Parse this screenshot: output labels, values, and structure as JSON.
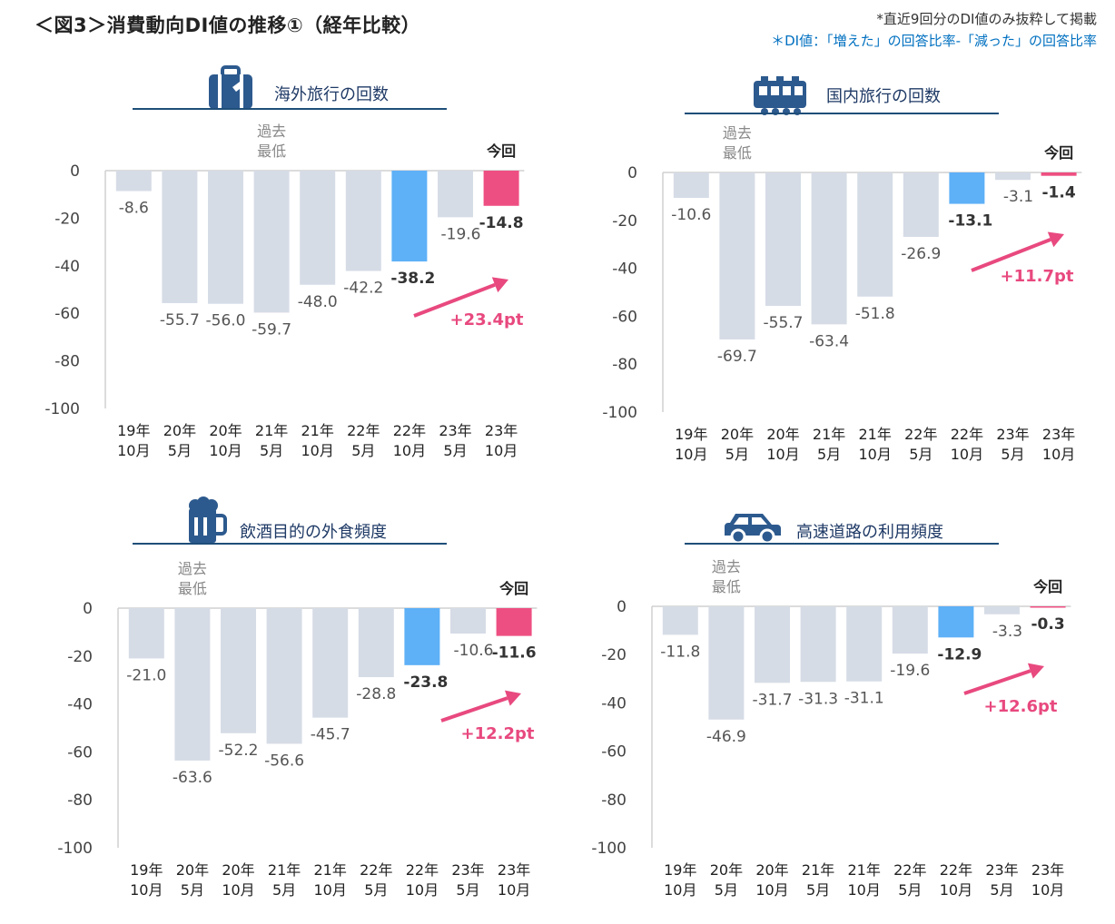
{
  "header": {
    "title": "＜図3＞消費動向DI値の推移①（経年比較）",
    "note_1": "*直近9回分のDI値のみ抜粋して掲載",
    "note_2": "＊DI値：「増えた」の回答比率-「減った」の回答比率"
  },
  "colors": {
    "normal_bar": "#d6dce6",
    "last_year_bar": "#5eb0f7",
    "current_bar": "#ee4f82",
    "arrow": "#e8497f",
    "icon": "#2d5a8e"
  },
  "chart_data": [
    {
      "type": "bar",
      "title": "海外旅行の回数",
      "icon": "suitcase-icon",
      "categories": [
        [
          "19年",
          "10月"
        ],
        [
          "20年",
          "5月"
        ],
        [
          "20年",
          "10月"
        ],
        [
          "21年",
          "5月"
        ],
        [
          "21年",
          "10月"
        ],
        [
          "22年",
          "5月"
        ],
        [
          "22年",
          "10月"
        ],
        [
          "23年",
          "5月"
        ],
        [
          "23年",
          "10月"
        ]
      ],
      "values": [
        -8.6,
        -55.7,
        -56.0,
        -59.7,
        -48.0,
        -42.2,
        -38.2,
        -19.6,
        -14.8
      ],
      "value_labels": [
        "-8.6",
        "-55.7",
        "-56.0",
        "-59.7",
        "-48.0",
        "-42.2",
        "-38.2",
        "-19.6",
        "-14.8"
      ],
      "yticks": [
        "0",
        "-20",
        "-40",
        "-60",
        "-80",
        "-100"
      ],
      "ylim": [
        -100,
        0
      ],
      "lowest_label": [
        "過去",
        "最低"
      ],
      "lowest_index": 3,
      "current_label": "今回",
      "change_label": "+23.4pt"
    },
    {
      "type": "bar",
      "title": "国内旅行の回数",
      "icon": "train-icon",
      "categories": [
        [
          "19年",
          "10月"
        ],
        [
          "20年",
          "5月"
        ],
        [
          "20年",
          "10月"
        ],
        [
          "21年",
          "5月"
        ],
        [
          "21年",
          "10月"
        ],
        [
          "22年",
          "5月"
        ],
        [
          "22年",
          "10月"
        ],
        [
          "23年",
          "5月"
        ],
        [
          "23年",
          "10月"
        ]
      ],
      "values": [
        -10.6,
        -69.7,
        -55.7,
        -63.4,
        -51.8,
        -26.9,
        -13.1,
        -3.1,
        -1.4
      ],
      "value_labels": [
        "-10.6",
        "-69.7",
        "-55.7",
        "-63.4",
        "-51.8",
        "-26.9",
        "-13.1",
        "-3.1",
        "-1.4"
      ],
      "yticks": [
        "0",
        "-20",
        "-40",
        "-60",
        "-80",
        "-100"
      ],
      "ylim": [
        -100,
        0
      ],
      "lowest_label": [
        "過去",
        "最低"
      ],
      "lowest_index": 1,
      "current_label": "今回",
      "change_label": "+11.7pt"
    },
    {
      "type": "bar",
      "title": "飲酒目的の外食頻度",
      "icon": "beer-mug-icon",
      "categories": [
        [
          "19年",
          "10月"
        ],
        [
          "20年",
          "5月"
        ],
        [
          "20年",
          "10月"
        ],
        [
          "21年",
          "5月"
        ],
        [
          "21年",
          "10月"
        ],
        [
          "22年",
          "5月"
        ],
        [
          "22年",
          "10月"
        ],
        [
          "23年",
          "5月"
        ],
        [
          "23年",
          "10月"
        ]
      ],
      "values": [
        -21.0,
        -63.6,
        -52.2,
        -56.6,
        -45.7,
        -28.8,
        -23.8,
        -10.6,
        -11.6
      ],
      "value_labels": [
        "-21.0",
        "-63.6",
        "-52.2",
        "-56.6",
        "-45.7",
        "-28.8",
        "-23.8",
        "-10.6",
        "-11.6"
      ],
      "yticks": [
        "0",
        "-20",
        "-40",
        "-60",
        "-80",
        "-100"
      ],
      "ylim": [
        -100,
        0
      ],
      "lowest_label": [
        "過去",
        "最低"
      ],
      "lowest_index": 1,
      "current_label": "今回",
      "change_label": "+12.2pt"
    },
    {
      "type": "bar",
      "title": "高速道路の利用頻度",
      "icon": "car-icon",
      "categories": [
        [
          "19年",
          "10月"
        ],
        [
          "20年",
          "5月"
        ],
        [
          "20年",
          "10月"
        ],
        [
          "21年",
          "5月"
        ],
        [
          "21年",
          "10月"
        ],
        [
          "22年",
          "5月"
        ],
        [
          "22年",
          "10月"
        ],
        [
          "23年",
          "5月"
        ],
        [
          "23年",
          "10月"
        ]
      ],
      "values": [
        -11.8,
        -46.9,
        -31.7,
        -31.3,
        -31.1,
        -19.6,
        -12.9,
        -3.3,
        -0.3
      ],
      "value_labels": [
        "-11.8",
        "-46.9",
        "-31.7",
        "-31.3",
        "-31.1",
        "-19.6",
        "-12.9",
        "-3.3",
        "-0.3"
      ],
      "yticks": [
        "0",
        "-20",
        "-40",
        "-60",
        "-80",
        "-100"
      ],
      "ylim": [
        -100,
        0
      ],
      "lowest_label": [
        "過去",
        "最低"
      ],
      "lowest_index": 1,
      "current_label": "今回",
      "change_label": "+12.6pt"
    }
  ]
}
